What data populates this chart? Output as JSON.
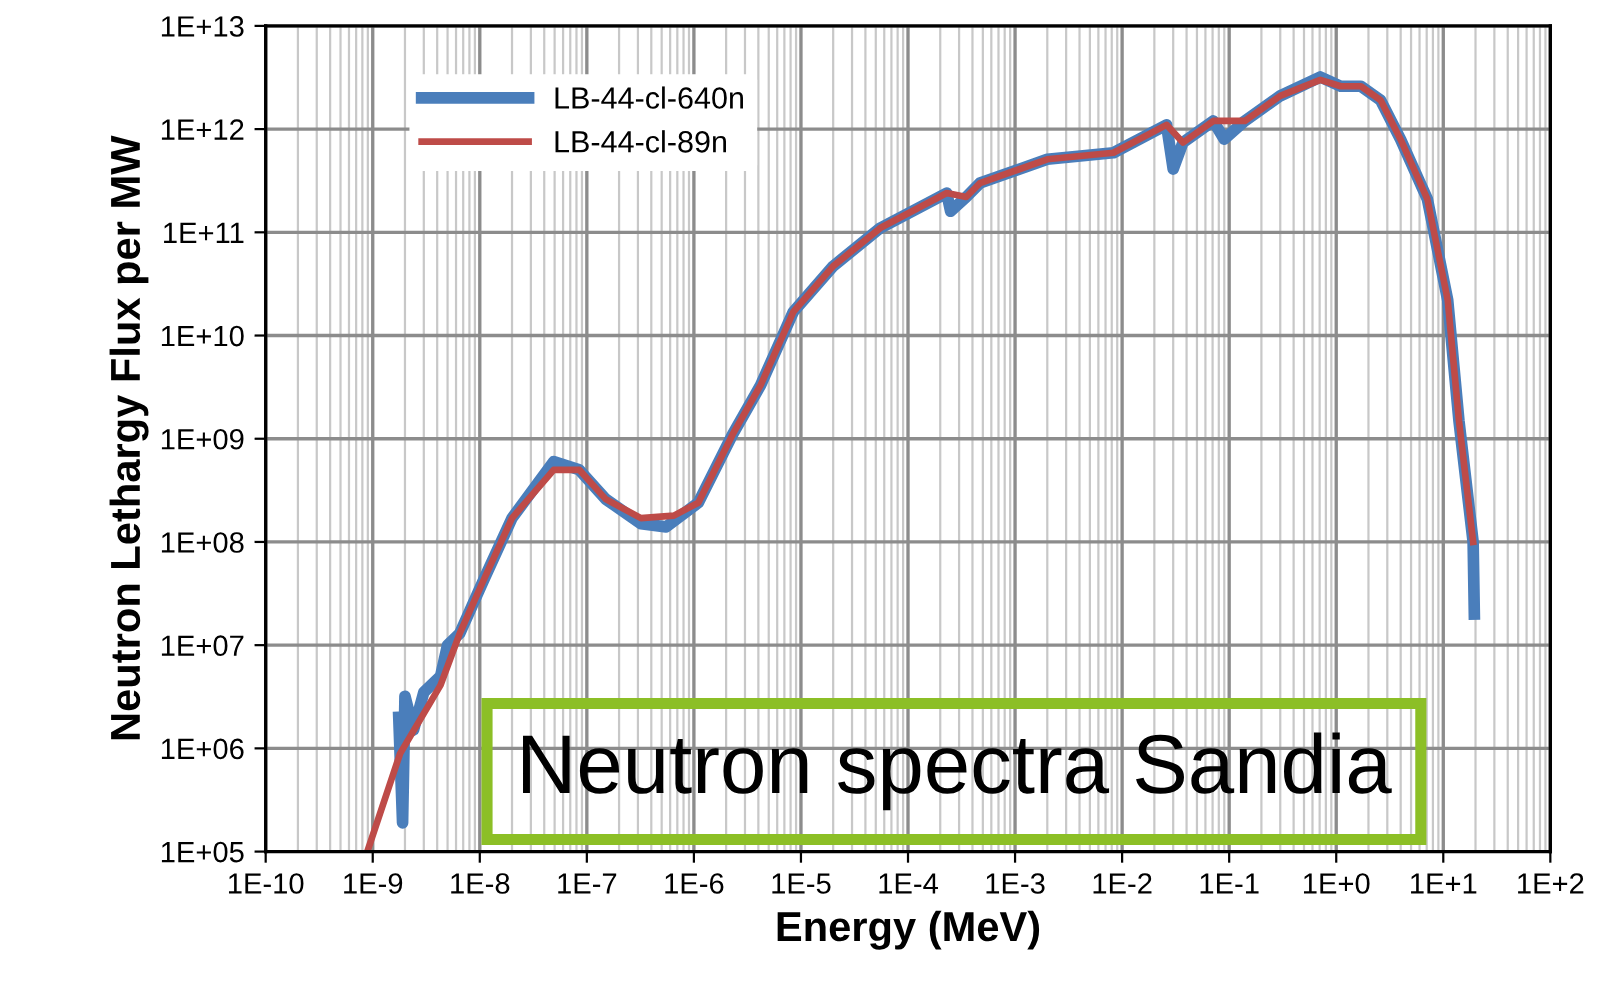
{
  "chart_data": {
    "type": "line",
    "xlabel": "Energy (MeV)",
    "ylabel": "Neutron Lethargy Flux per MW",
    "log": "xy",
    "grid": true,
    "legend": "top left",
    "line_style": "solid",
    "marker": "none",
    "xlim": [
      1e-10,
      100
    ],
    "ylim": [
      100000,
      10000000000000.0
    ],
    "xticks": [
      {
        "value": 1e-10,
        "label": "1E-10"
      },
      {
        "value": 1e-09,
        "label": "1E-9"
      },
      {
        "value": 1e-08,
        "label": "1E-8"
      },
      {
        "value": 1e-07,
        "label": "1E-7"
      },
      {
        "value": 1e-06,
        "label": "1E-6"
      },
      {
        "value": 1e-05,
        "label": "1E-5"
      },
      {
        "value": 0.0001,
        "label": "1E-4"
      },
      {
        "value": 0.001,
        "label": "1E-3"
      },
      {
        "value": 0.01,
        "label": "1E-2"
      },
      {
        "value": 0.1,
        "label": "1E-1"
      },
      {
        "value": 1,
        "label": "1E+0"
      },
      {
        "value": 10,
        "label": "1E+1"
      },
      {
        "value": 100,
        "label": "1E+2"
      }
    ],
    "yticks": [
      {
        "value": 100000,
        "label": "1E+05"
      },
      {
        "value": 1000000,
        "label": "1E+06"
      },
      {
        "value": 10000000.0,
        "label": "1E+07"
      },
      {
        "value": 100000000.0,
        "label": "1E+08"
      },
      {
        "value": 1000000000.0,
        "label": "1E+09"
      },
      {
        "value": 10000000000.0,
        "label": "1E+10"
      },
      {
        "value": 100000000000.0,
        "label": "1E+11"
      },
      {
        "value": 1000000000000.0,
        "label": "1E+12"
      },
      {
        "value": 10000000000000.0,
        "label": "1E+13"
      }
    ],
    "series": [
      {
        "name": "LB-44-cl-640n",
        "color": "#4a7ebb",
        "x": [
          1.75e-09,
          1.9e-09,
          2e-09,
          2.4e-09,
          3e-09,
          4.3e-09,
          5e-09,
          6.5e-09,
          1.1e-08,
          2e-08,
          4.9e-08,
          8.5e-08,
          1.5e-07,
          3.2e-07,
          5.5e-07,
          1.1e-06,
          2.3e-06,
          4.2e-06,
          8.5e-06,
          2e-05,
          5.5e-05,
          0.00023,
          0.00025,
          0.00035,
          0.00047,
          0.002,
          0.0083,
          0.026,
          0.03,
          0.037,
          0.071,
          0.09,
          0.14,
          0.3,
          0.71,
          1.1,
          1.7,
          2.6,
          4.0,
          7.1,
          11,
          14,
          19,
          19.5
        ],
        "values": [
          2000000.0,
          190000.0,
          3200000.0,
          1500000.0,
          3500000.0,
          5000000.0,
          10000000.0,
          13000000.0,
          44000000.0,
          170000000.0,
          600000000.0,
          500000000.0,
          260000000.0,
          150000000.0,
          140000000.0,
          240000000.0,
          1100000000.0,
          3300000000.0,
          17000000000.0,
          47000000000.0,
          110000000000.0,
          240000000000.0,
          160000000000.0,
          220000000000.0,
          300000000000.0,
          510000000000.0,
          590000000000.0,
          1100000000000.0,
          410000000000.0,
          740000000000.0,
          1200000000000.0,
          800000000000.0,
          1200000000000.0,
          2100000000000.0,
          3200000000000.0,
          2600000000000.0,
          2600000000000.0,
          1900000000000.0,
          790000000000.0,
          210000000000.0,
          22000000000.0,
          1500000000.0,
          100000000.0,
          20000000.0
        ]
      },
      {
        "name": "LB-44-cl-89n",
        "color": "#be4b48",
        "x": [
          8.9e-10,
          1.8e-09,
          4.3e-09,
          6.5e-09,
          1.1e-08,
          2e-08,
          4.9e-08,
          8.5e-08,
          1.5e-07,
          3.2e-07,
          6.5e-07,
          1.1e-06,
          2.3e-06,
          4.2e-06,
          8.5e-06,
          2e-05,
          5.5e-05,
          0.00023,
          0.00035,
          0.00047,
          0.002,
          0.0083,
          0.026,
          0.037,
          0.071,
          0.14,
          0.3,
          0.71,
          1.1,
          1.7,
          2.6,
          4.0,
          7.1,
          11,
          14,
          19
        ],
        "values": [
          100000.0,
          890000.0,
          4100000.0,
          13000000.0,
          44000000.0,
          170000000.0,
          500000000.0,
          500000000.0,
          260000000.0,
          170000000.0,
          180000000.0,
          240000000.0,
          1100000000.0,
          3300000000.0,
          17000000000.0,
          47000000000.0,
          110000000000.0,
          240000000000.0,
          220000000000.0,
          300000000000.0,
          510000000000.0,
          590000000000.0,
          1100000000000.0,
          740000000000.0,
          1200000000000.0,
          1200000000000.0,
          2100000000000.0,
          3000000000000.0,
          2600000000000.0,
          2600000000000.0,
          1900000000000.0,
          790000000000.0,
          210000000000.0,
          22000000000.0,
          1500000000.0,
          100000000.0
        ]
      }
    ],
    "annotations": [
      "Neutron spectra Sandia"
    ]
  }
}
